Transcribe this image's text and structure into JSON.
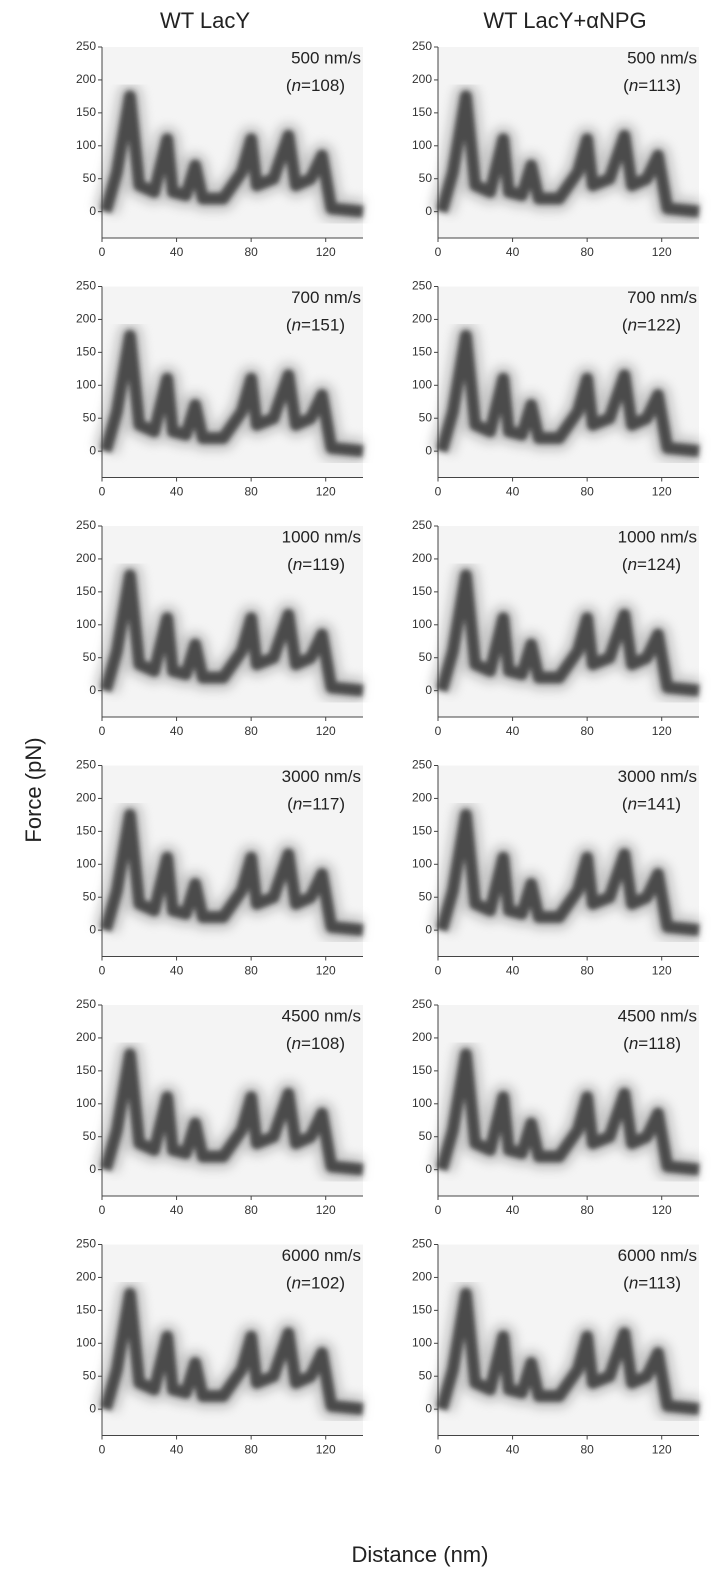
{
  "figure": {
    "column_titles": [
      "WT LacY",
      "WT LacY+αNPG"
    ],
    "xlabel": "Distance (nm)",
    "ylabel": "Force (pN)"
  },
  "chart_data": [
    {
      "type": "density",
      "speed": "500 nm/s",
      "sample": "(n=108)",
      "xlim": [
        0,
        140
      ],
      "ylim": [
        -40,
        250
      ],
      "xticks": [
        0,
        40,
        80,
        120
      ],
      "yticks": [
        0,
        50,
        100,
        150,
        200,
        250
      ]
    },
    {
      "type": "density",
      "speed": "500 nm/s",
      "sample": "(n=113)",
      "xlim": [
        0,
        140
      ],
      "ylim": [
        -40,
        250
      ],
      "xticks": [
        0,
        40,
        80,
        120
      ],
      "yticks": [
        0,
        50,
        100,
        150,
        200,
        250
      ]
    },
    {
      "type": "density",
      "speed": "700 nm/s",
      "sample": "(n=151)",
      "xlim": [
        0,
        140
      ],
      "ylim": [
        -40,
        250
      ],
      "xticks": [
        0,
        40,
        80,
        120
      ],
      "yticks": [
        0,
        50,
        100,
        150,
        200,
        250
      ]
    },
    {
      "type": "density",
      "speed": "700 nm/s",
      "sample": "(n=122)",
      "xlim": [
        0,
        140
      ],
      "ylim": [
        -40,
        250
      ],
      "xticks": [
        0,
        40,
        80,
        120
      ],
      "yticks": [
        0,
        50,
        100,
        150,
        200,
        250
      ]
    },
    {
      "type": "density",
      "speed": "1000 nm/s",
      "sample": "(n=119)",
      "xlim": [
        0,
        140
      ],
      "ylim": [
        -40,
        250
      ],
      "xticks": [
        0,
        40,
        80,
        120
      ],
      "yticks": [
        0,
        50,
        100,
        150,
        200,
        250
      ]
    },
    {
      "type": "density",
      "speed": "1000 nm/s",
      "sample": "(n=124)",
      "xlim": [
        0,
        140
      ],
      "ylim": [
        -40,
        250
      ],
      "xticks": [
        0,
        40,
        80,
        120
      ],
      "yticks": [
        0,
        50,
        100,
        150,
        200,
        250
      ]
    },
    {
      "type": "density",
      "speed": "3000 nm/s",
      "sample": "(n=117)",
      "xlim": [
        0,
        140
      ],
      "ylim": [
        -40,
        250
      ],
      "xticks": [
        0,
        40,
        80,
        120
      ],
      "yticks": [
        0,
        50,
        100,
        150,
        200,
        250
      ]
    },
    {
      "type": "density",
      "speed": "3000 nm/s",
      "sample": "(n=141)",
      "xlim": [
        0,
        140
      ],
      "ylim": [
        -40,
        250
      ],
      "xticks": [
        0,
        40,
        80,
        120
      ],
      "yticks": [
        0,
        50,
        100,
        150,
        200,
        250
      ]
    },
    {
      "type": "density",
      "speed": "4500 nm/s",
      "sample": "(n=108)",
      "xlim": [
        0,
        140
      ],
      "ylim": [
        -40,
        250
      ],
      "xticks": [
        0,
        40,
        80,
        120
      ],
      "yticks": [
        0,
        50,
        100,
        150,
        200,
        250
      ]
    },
    {
      "type": "density",
      "speed": "4500 nm/s",
      "sample": "(n=118)",
      "xlim": [
        0,
        140
      ],
      "ylim": [
        -40,
        250
      ],
      "xticks": [
        0,
        40,
        80,
        120
      ],
      "yticks": [
        0,
        50,
        100,
        150,
        200,
        250
      ]
    },
    {
      "type": "density",
      "speed": "6000 nm/s",
      "sample": "(n=102)",
      "xlim": [
        0,
        140
      ],
      "ylim": [
        -40,
        250
      ],
      "xticks": [
        0,
        40,
        80,
        120
      ],
      "yticks": [
        0,
        50,
        100,
        150,
        200,
        250
      ]
    },
    {
      "type": "density",
      "speed": "6000 nm/s",
      "sample": "(n=113)",
      "xlim": [
        0,
        140
      ],
      "ylim": [
        -40,
        250
      ],
      "xticks": [
        0,
        40,
        80,
        120
      ],
      "yticks": [
        0,
        50,
        100,
        150,
        200,
        250
      ]
    }
  ]
}
